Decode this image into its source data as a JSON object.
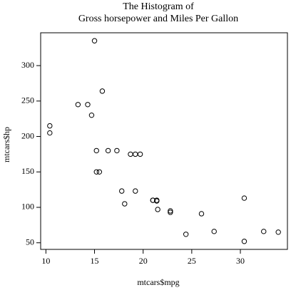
{
  "chart_data": {
    "type": "scatter",
    "title": [
      "The Histogram of",
      "Gross horsepower and Miles Per Gallon"
    ],
    "x_label": "mtcars$mpg",
    "y_label": "mtcars$hp",
    "x": [
      21.0,
      21.0,
      22.8,
      21.4,
      18.7,
      18.1,
      14.3,
      24.4,
      22.8,
      19.2,
      17.8,
      16.4,
      17.3,
      15.2,
      10.4,
      10.4,
      14.7,
      32.4,
      30.4,
      33.9,
      21.5,
      15.5,
      15.2,
      13.3,
      19.2,
      27.3,
      26.0,
      30.4,
      15.8,
      19.7,
      15.0,
      21.4
    ],
    "values": [
      110,
      110,
      93,
      110,
      175,
      105,
      245,
      62,
      95,
      123,
      123,
      180,
      180,
      180,
      205,
      215,
      230,
      66,
      52,
      65,
      97,
      150,
      150,
      245,
      175,
      66,
      91,
      113,
      264,
      175,
      335,
      109
    ],
    "color": "#000000",
    "xlim": [
      9.46,
      34.84
    ],
    "ylim": [
      40.68,
      346.32
    ],
    "xticks": [
      10,
      15,
      20,
      25,
      30
    ],
    "yticks": [
      50,
      100,
      150,
      200,
      250,
      300
    ]
  }
}
